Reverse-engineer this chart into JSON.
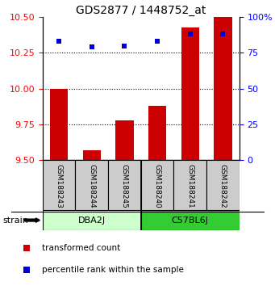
{
  "title": "GDS2877 / 1448752_at",
  "samples": [
    "GSM188243",
    "GSM188244",
    "GSM188245",
    "GSM188240",
    "GSM188241",
    "GSM188242"
  ],
  "bar_values": [
    10.0,
    9.57,
    9.78,
    9.88,
    10.43,
    10.5
  ],
  "percentile_values": [
    83,
    79,
    80,
    83,
    88,
    88
  ],
  "bar_color": "#cc0000",
  "dot_color": "#0000cc",
  "ylim_left": [
    9.5,
    10.5
  ],
  "ylim_right": [
    0,
    100
  ],
  "yticks_left": [
    9.5,
    9.75,
    10.0,
    10.25,
    10.5
  ],
  "yticks_right": [
    0,
    25,
    50,
    75,
    100
  ],
  "groups": [
    {
      "label": "DBA2J",
      "start": 0,
      "end": 3,
      "color": "#ccffcc"
    },
    {
      "label": "C57BL6J",
      "start": 3,
      "end": 6,
      "color": "#33cc33"
    }
  ],
  "sample_box_color": "#cccccc",
  "bar_width": 0.55,
  "bar_bottom": 9.5,
  "legend_red_label": "transformed count",
  "legend_blue_label": "percentile rank within the sample",
  "strain_label": "strain"
}
